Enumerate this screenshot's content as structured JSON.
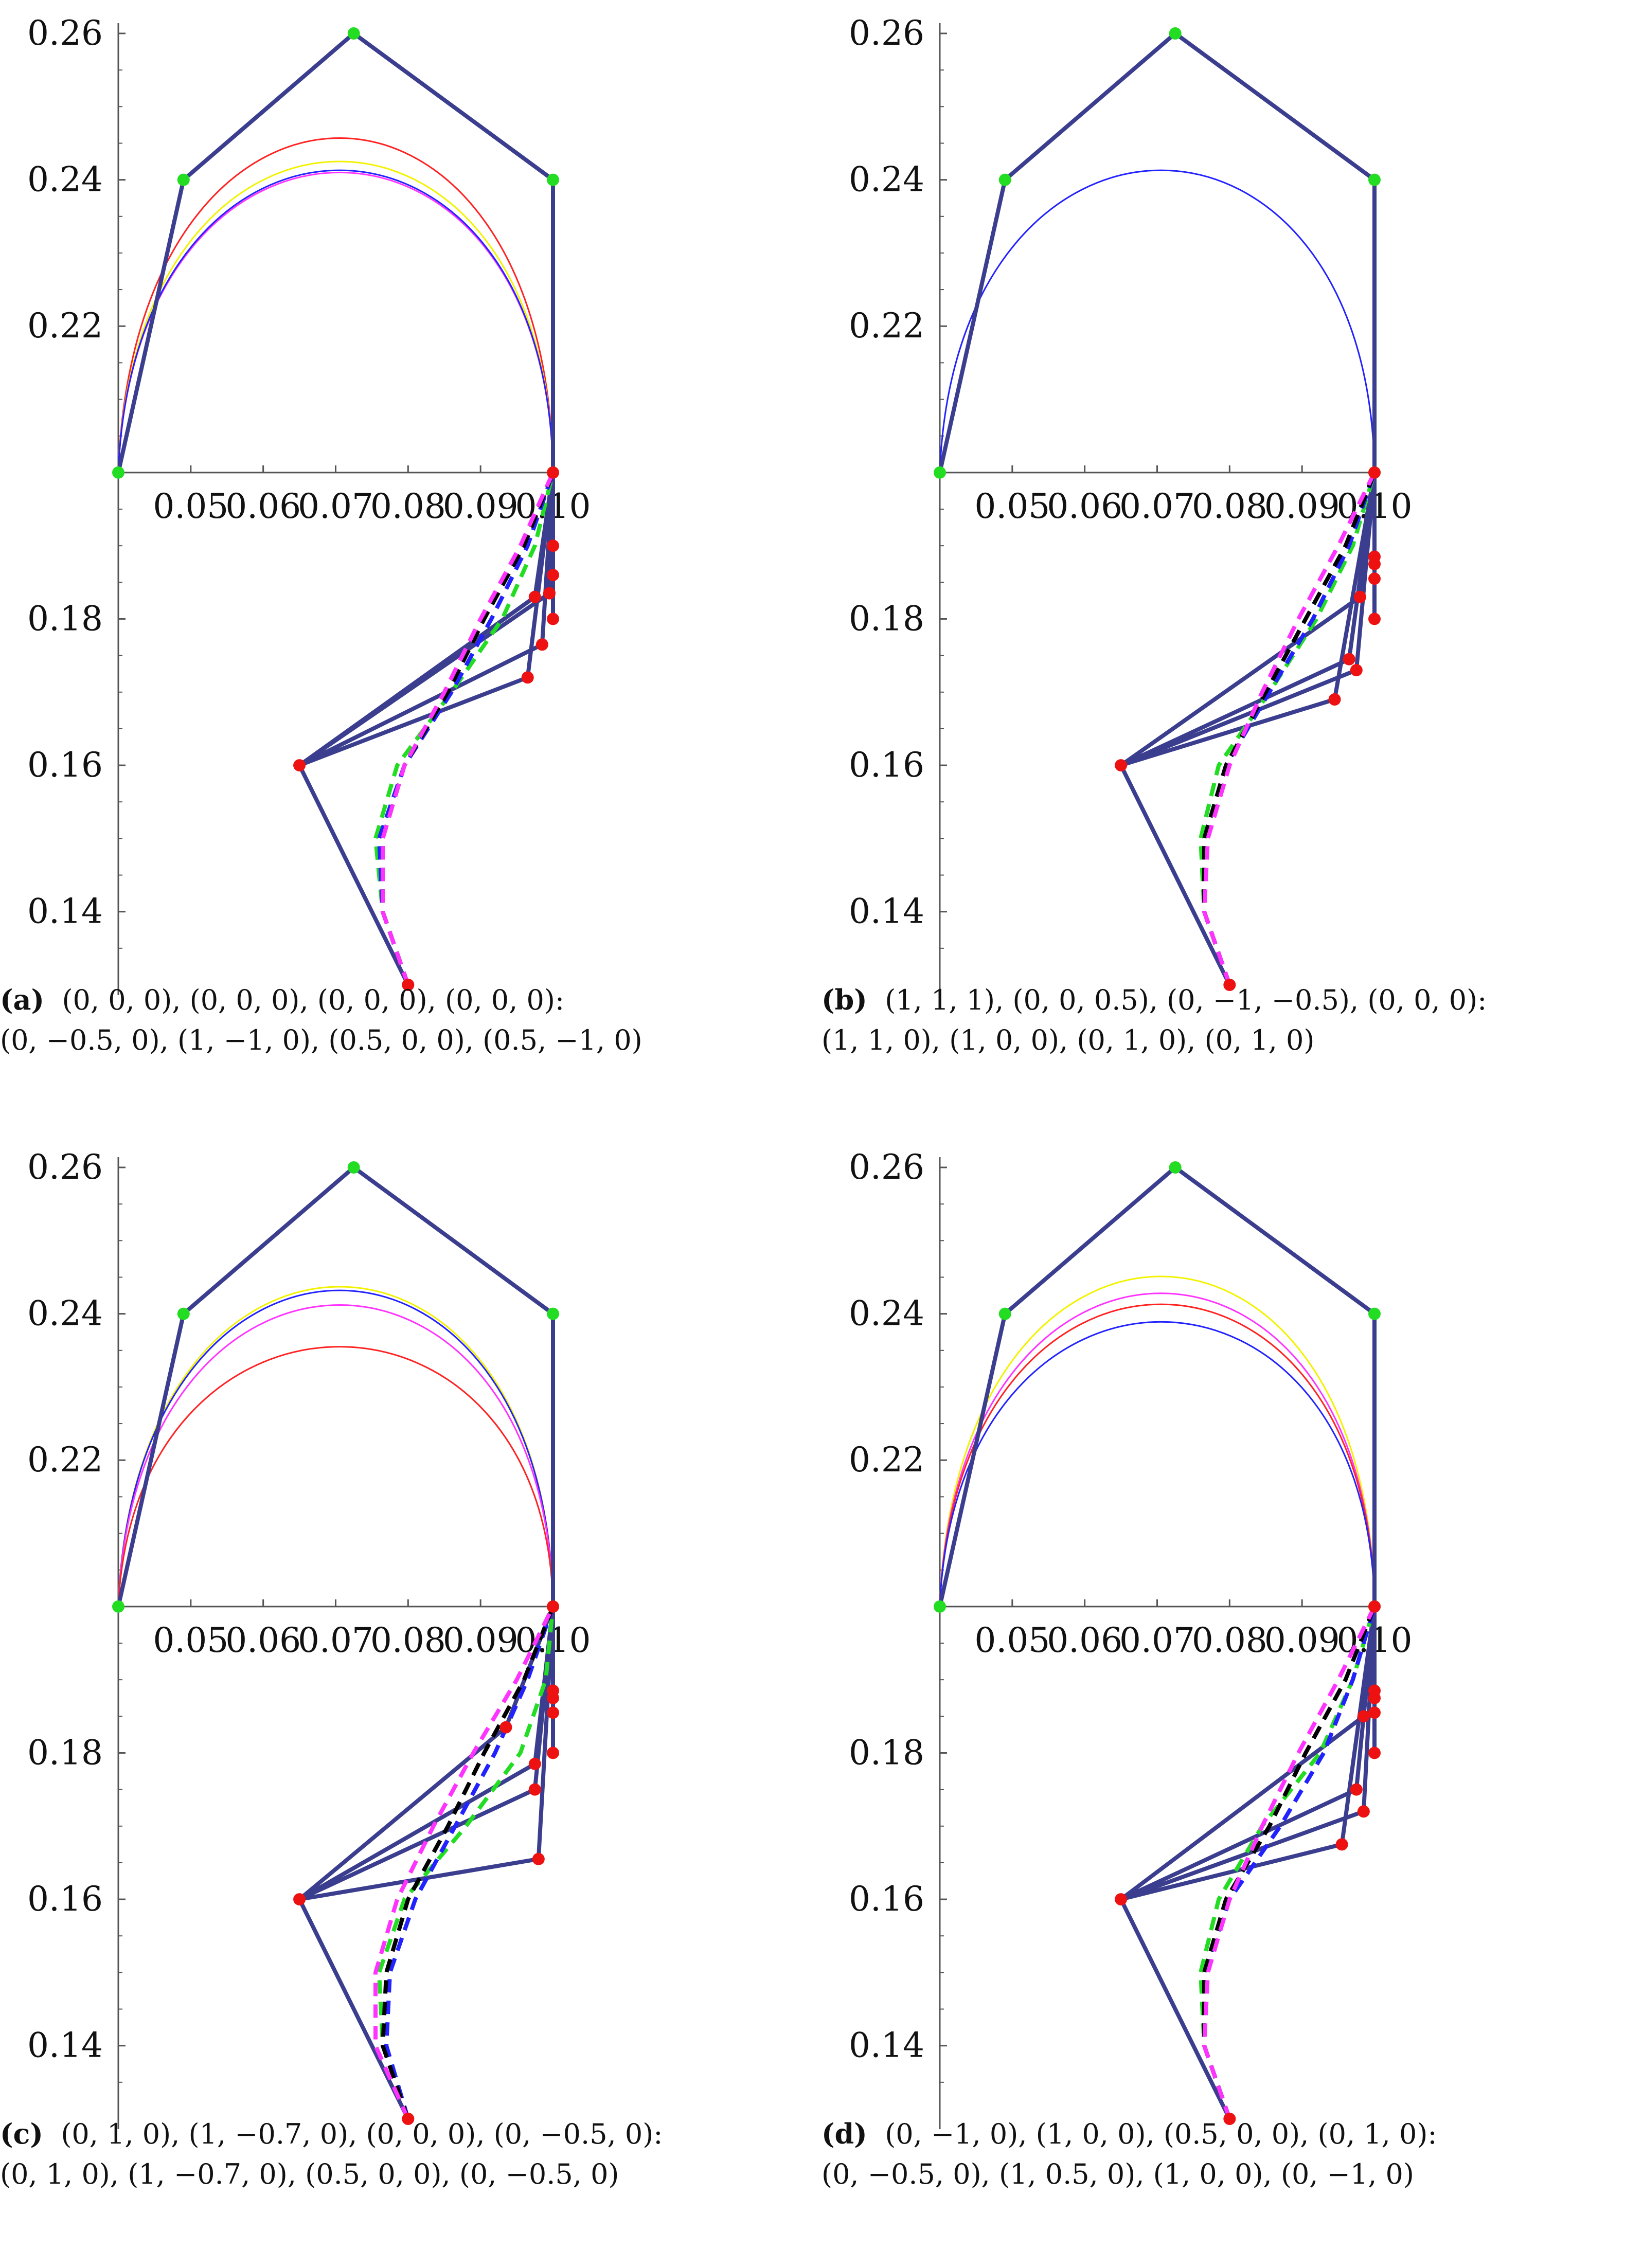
{
  "colors": {
    "polygon": "#3b3e8f",
    "upper_points": "#22dd22",
    "lower_points": "#ee1111",
    "axis": "#555555",
    "red": "#ff2222",
    "yellow": "#f2f200",
    "magenta": "#ff33ff",
    "blue": "#2222ff",
    "black": "#000000",
    "green": "#22dd22"
  },
  "chart_data": [
    {
      "type": "line",
      "panel_label": "(a)",
      "caption_line1": "(0, 0, 0), (0, 0, 0), (0, 0, 0), (0, 0, 0):",
      "caption_line2": "(0, −0.5, 0), (1, −1, 0), (0.5, 0, 0), (0.5, −1, 0)",
      "x_axis_at_y": 0.2,
      "y_axis_at_x": 0.04,
      "xlim": [
        0.04,
        0.1
      ],
      "ylim": [
        0.13,
        0.26
      ],
      "xticks": [
        0.05,
        0.06,
        0.07,
        0.08,
        0.09,
        0.1
      ],
      "xtick_labels": [
        "0.05",
        "0.06",
        "0.07",
        "0.08",
        "0.09",
        "0.10"
      ],
      "yticks": [
        0.14,
        0.16,
        0.18,
        0.22,
        0.24,
        0.26
      ],
      "ytick_labels": [
        "0.14",
        "0.16",
        "0.18",
        "0.22",
        "0.24",
        "0.26"
      ],
      "upper_control_polygon": [
        [
          0.04,
          0.2
        ],
        [
          0.049,
          0.24
        ],
        [
          0.0725,
          0.26
        ],
        [
          0.1,
          0.24
        ],
        [
          0.1,
          0.2
        ]
      ],
      "upper_curves": [
        {
          "color": "red",
          "peak": 0.2457
        },
        {
          "color": "yellow",
          "peak": 0.2425
        },
        {
          "color": "magenta",
          "peak": 0.241
        },
        {
          "color": "blue",
          "peak": 0.2413
        }
      ],
      "lower_hub": [
        0.065,
        0.16
      ],
      "lower_start": [
        0.08,
        0.13
      ],
      "lower_end": [
        0.1,
        0.2
      ],
      "lower_points": [
        [
          0.0965,
          0.172
        ],
        [
          0.0985,
          0.1765
        ],
        [
          0.0975,
          0.183
        ],
        [
          0.0995,
          0.1835
        ],
        [
          0.1,
          0.18
        ],
        [
          0.1,
          0.186
        ],
        [
          0.1,
          0.19
        ]
      ],
      "lower_curves": [
        {
          "color": "green",
          "values": [
            [
              0.08,
              0.13
            ],
            [
              0.0765,
              0.14
            ],
            [
              0.0755,
              0.15
            ],
            [
              0.0785,
              0.16
            ],
            [
              0.086,
              0.17
            ],
            [
              0.093,
              0.18
            ],
            [
              0.0975,
              0.19
            ],
            [
              0.1,
              0.2
            ]
          ]
        },
        {
          "color": "blue",
          "values": [
            [
              0.08,
              0.13
            ],
            [
              0.0765,
              0.14
            ],
            [
              0.076,
              0.15
            ],
            [
              0.0795,
              0.16
            ],
            [
              0.086,
              0.17
            ],
            [
              0.0915,
              0.18
            ],
            [
              0.0965,
              0.19
            ],
            [
              0.1,
              0.2
            ]
          ]
        },
        {
          "color": "black",
          "values": [
            [
              0.08,
              0.13
            ],
            [
              0.0765,
              0.14
            ],
            [
              0.0765,
              0.15
            ],
            [
              0.0795,
              0.16
            ],
            [
              0.0855,
              0.17
            ],
            [
              0.0905,
              0.18
            ],
            [
              0.096,
              0.19
            ],
            [
              0.1,
              0.2
            ]
          ]
        },
        {
          "color": "magenta",
          "values": [
            [
              0.08,
              0.13
            ],
            [
              0.0765,
              0.14
            ],
            [
              0.0765,
              0.15
            ],
            [
              0.0795,
              0.16
            ],
            [
              0.085,
              0.17
            ],
            [
              0.09,
              0.18
            ],
            [
              0.0955,
              0.19
            ],
            [
              0.1,
              0.2
            ]
          ]
        }
      ]
    },
    {
      "type": "line",
      "panel_label": "(b)",
      "caption_line1": "(1, 1, 1), (0, 0, 0.5), (0, −1, −0.5), (0, 0, 0):",
      "caption_line2": "(1, 1, 0), (1, 0, 0), (0, 1, 0), (0, 1, 0)",
      "x_axis_at_y": 0.2,
      "y_axis_at_x": 0.04,
      "xlim": [
        0.04,
        0.1
      ],
      "ylim": [
        0.13,
        0.26
      ],
      "xticks": [
        0.05,
        0.06,
        0.07,
        0.08,
        0.09,
        0.1
      ],
      "xtick_labels": [
        "0.05",
        "0.06",
        "0.07",
        "0.08",
        "0.09",
        "0.10"
      ],
      "yticks": [
        0.14,
        0.16,
        0.18,
        0.22,
        0.24,
        0.26
      ],
      "ytick_labels": [
        "0.14",
        "0.16",
        "0.18",
        "0.22",
        "0.24",
        "0.26"
      ],
      "upper_control_polygon": [
        [
          0.04,
          0.2
        ],
        [
          0.049,
          0.24
        ],
        [
          0.0725,
          0.26
        ],
        [
          0.1,
          0.24
        ],
        [
          0.1,
          0.2
        ]
      ],
      "upper_curves": [
        {
          "color": "blue",
          "peak": 0.2413
        }
      ],
      "lower_hub": [
        0.065,
        0.16
      ],
      "lower_start": [
        0.08,
        0.13
      ],
      "lower_end": [
        0.1,
        0.2
      ],
      "lower_points": [
        [
          0.0945,
          0.169
        ],
        [
          0.0975,
          0.173
        ],
        [
          0.0965,
          0.1745
        ],
        [
          0.098,
          0.183
        ],
        [
          0.1,
          0.18
        ],
        [
          0.1,
          0.1855
        ],
        [
          0.1,
          0.1875
        ],
        [
          0.1,
          0.1885
        ]
      ],
      "lower_curves": [
        {
          "color": "green",
          "values": [
            [
              0.08,
              0.13
            ],
            [
              0.0765,
              0.14
            ],
            [
              0.076,
              0.15
            ],
            [
              0.0785,
              0.16
            ],
            [
              0.0855,
              0.17
            ],
            [
              0.092,
              0.18
            ],
            [
              0.097,
              0.19
            ],
            [
              0.1,
              0.2
            ]
          ]
        },
        {
          "color": "blue",
          "values": [
            [
              0.08,
              0.13
            ],
            [
              0.0765,
              0.14
            ],
            [
              0.0765,
              0.15
            ],
            [
              0.0795,
              0.16
            ],
            [
              0.0855,
              0.17
            ],
            [
              0.0915,
              0.18
            ],
            [
              0.0965,
              0.19
            ],
            [
              0.1,
              0.2
            ]
          ]
        },
        {
          "color": "black",
          "values": [
            [
              0.08,
              0.13
            ],
            [
              0.0765,
              0.14
            ],
            [
              0.0765,
              0.15
            ],
            [
              0.0795,
              0.16
            ],
            [
              0.085,
              0.17
            ],
            [
              0.0905,
              0.18
            ],
            [
              0.096,
              0.19
            ],
            [
              0.1,
              0.2
            ]
          ]
        },
        {
          "color": "magenta",
          "values": [
            [
              0.08,
              0.13
            ],
            [
              0.0765,
              0.14
            ],
            [
              0.077,
              0.15
            ],
            [
              0.08,
              0.16
            ],
            [
              0.0845,
              0.17
            ],
            [
              0.0895,
              0.18
            ],
            [
              0.095,
              0.19
            ],
            [
              0.1,
              0.2
            ]
          ]
        }
      ]
    },
    {
      "type": "line",
      "panel_label": "(c)",
      "caption_line1": "(0, 1, 0), (1, −0.7, 0), (0, 0, 0), (0, −0.5, 0):",
      "caption_line2": "(0, 1, 0), (1, −0.7, 0), (0.5, 0, 0), (0, −0.5, 0)",
      "x_axis_at_y": 0.2,
      "y_axis_at_x": 0.04,
      "xlim": [
        0.04,
        0.1
      ],
      "ylim": [
        0.13,
        0.26
      ],
      "xticks": [
        0.05,
        0.06,
        0.07,
        0.08,
        0.09,
        0.1
      ],
      "xtick_labels": [
        "0.05",
        "0.06",
        "0.07",
        "0.08",
        "0.09",
        "0.10"
      ],
      "yticks": [
        0.14,
        0.16,
        0.18,
        0.22,
        0.24,
        0.26
      ],
      "ytick_labels": [
        "0.14",
        "0.16",
        "0.18",
        "0.22",
        "0.24",
        "0.26"
      ],
      "upper_control_polygon": [
        [
          0.04,
          0.2
        ],
        [
          0.049,
          0.24
        ],
        [
          0.0725,
          0.26
        ],
        [
          0.1,
          0.24
        ],
        [
          0.1,
          0.2
        ]
      ],
      "upper_curves": [
        {
          "color": "yellow",
          "peak": 0.2437
        },
        {
          "color": "blue",
          "peak": 0.2432
        },
        {
          "color": "magenta",
          "peak": 0.2412
        },
        {
          "color": "red",
          "peak": 0.2355
        }
      ],
      "lower_hub": [
        0.065,
        0.16
      ],
      "lower_start": [
        0.08,
        0.13
      ],
      "lower_end": [
        0.1,
        0.2
      ],
      "lower_points": [
        [
          0.0935,
          0.1835
        ],
        [
          0.0975,
          0.1785
        ],
        [
          0.0975,
          0.175
        ],
        [
          0.098,
          0.1655
        ],
        [
          0.1,
          0.18
        ],
        [
          0.1,
          0.1855
        ],
        [
          0.1,
          0.1875
        ],
        [
          0.1,
          0.1885
        ]
      ],
      "lower_curves": [
        {
          "color": "green",
          "values": [
            [
              0.08,
              0.13
            ],
            [
              0.0765,
              0.14
            ],
            [
              0.076,
              0.15
            ],
            [
              0.0795,
              0.16
            ],
            [
              0.088,
              0.17
            ],
            [
              0.0955,
              0.18
            ],
            [
              0.099,
              0.19
            ],
            [
              0.1,
              0.2
            ]
          ]
        },
        {
          "color": "blue",
          "values": [
            [
              0.08,
              0.13
            ],
            [
              0.077,
              0.14
            ],
            [
              0.0775,
              0.15
            ],
            [
              0.081,
              0.16
            ],
            [
              0.0865,
              0.17
            ],
            [
              0.092,
              0.18
            ],
            [
              0.0965,
              0.19
            ],
            [
              0.1,
              0.2
            ]
          ]
        },
        {
          "color": "black",
          "values": [
            [
              0.08,
              0.13
            ],
            [
              0.0765,
              0.14
            ],
            [
              0.077,
              0.15
            ],
            [
              0.08,
              0.16
            ],
            [
              0.0855,
              0.17
            ],
            [
              0.0905,
              0.18
            ],
            [
              0.096,
              0.19
            ],
            [
              0.1,
              0.2
            ]
          ]
        },
        {
          "color": "magenta",
          "values": [
            [
              0.08,
              0.13
            ],
            [
              0.0755,
              0.14
            ],
            [
              0.0755,
              0.15
            ],
            [
              0.0785,
              0.16
            ],
            [
              0.0835,
              0.17
            ],
            [
              0.089,
              0.18
            ],
            [
              0.095,
              0.19
            ],
            [
              0.1,
              0.2
            ]
          ]
        }
      ]
    },
    {
      "type": "line",
      "panel_label": "(d)",
      "caption_line1": "(0, −1, 0), (1, 0, 0), (0.5, 0, 0), (0, 1, 0):",
      "caption_line2": "(0, −0.5, 0), (1, 0.5, 0), (1, 0, 0), (0, −1, 0)",
      "x_axis_at_y": 0.2,
      "y_axis_at_x": 0.04,
      "xlim": [
        0.04,
        0.1
      ],
      "ylim": [
        0.13,
        0.26
      ],
      "xticks": [
        0.05,
        0.06,
        0.07,
        0.08,
        0.09,
        0.1
      ],
      "xtick_labels": [
        "0.05",
        "0.06",
        "0.07",
        "0.08",
        "0.09",
        "0.10"
      ],
      "yticks": [
        0.14,
        0.16,
        0.18,
        0.22,
        0.24,
        0.26
      ],
      "ytick_labels": [
        "0.14",
        "0.16",
        "0.18",
        "0.22",
        "0.24",
        "0.26"
      ],
      "upper_control_polygon": [
        [
          0.04,
          0.2
        ],
        [
          0.049,
          0.24
        ],
        [
          0.0725,
          0.26
        ],
        [
          0.1,
          0.24
        ],
        [
          0.1,
          0.2
        ]
      ],
      "upper_curves": [
        {
          "color": "yellow",
          "peak": 0.2451
        },
        {
          "color": "magenta",
          "peak": 0.2428
        },
        {
          "color": "red",
          "peak": 0.2413
        },
        {
          "color": "blue",
          "peak": 0.2389
        }
      ],
      "lower_hub": [
        0.065,
        0.16
      ],
      "lower_start": [
        0.08,
        0.13
      ],
      "lower_end": [
        0.1,
        0.2
      ],
      "lower_points": [
        [
          0.0955,
          0.1675
        ],
        [
          0.0985,
          0.172
        ],
        [
          0.0975,
          0.175
        ],
        [
          0.0985,
          0.185
        ],
        [
          0.1,
          0.18
        ],
        [
          0.1,
          0.1855
        ],
        [
          0.1,
          0.1875
        ],
        [
          0.1,
          0.1885
        ]
      ],
      "lower_curves": [
        {
          "color": "green",
          "values": [
            [
              0.08,
              0.13
            ],
            [
              0.0765,
              0.14
            ],
            [
              0.076,
              0.15
            ],
            [
              0.0785,
              0.16
            ],
            [
              0.0845,
              0.17
            ],
            [
              0.0925,
              0.18
            ],
            [
              0.097,
              0.19
            ],
            [
              0.1,
              0.2
            ]
          ]
        },
        {
          "color": "blue",
          "values": [
            [
              0.08,
              0.13
            ],
            [
              0.0765,
              0.14
            ],
            [
              0.0765,
              0.15
            ],
            [
              0.08,
              0.16
            ],
            [
              0.087,
              0.17
            ],
            [
              0.093,
              0.18
            ],
            [
              0.097,
              0.19
            ],
            [
              0.1,
              0.2
            ]
          ]
        },
        {
          "color": "black",
          "values": [
            [
              0.08,
              0.13
            ],
            [
              0.0765,
              0.14
            ],
            [
              0.0765,
              0.15
            ],
            [
              0.0795,
              0.16
            ],
            [
              0.0855,
              0.17
            ],
            [
              0.0905,
              0.18
            ],
            [
              0.096,
              0.19
            ],
            [
              0.1,
              0.2
            ]
          ]
        },
        {
          "color": "magenta",
          "values": [
            [
              0.08,
              0.13
            ],
            [
              0.0765,
              0.14
            ],
            [
              0.077,
              0.15
            ],
            [
              0.08,
              0.16
            ],
            [
              0.0845,
              0.17
            ],
            [
              0.0895,
              0.18
            ],
            [
              0.095,
              0.19
            ],
            [
              0.1,
              0.2
            ]
          ]
        }
      ]
    }
  ]
}
